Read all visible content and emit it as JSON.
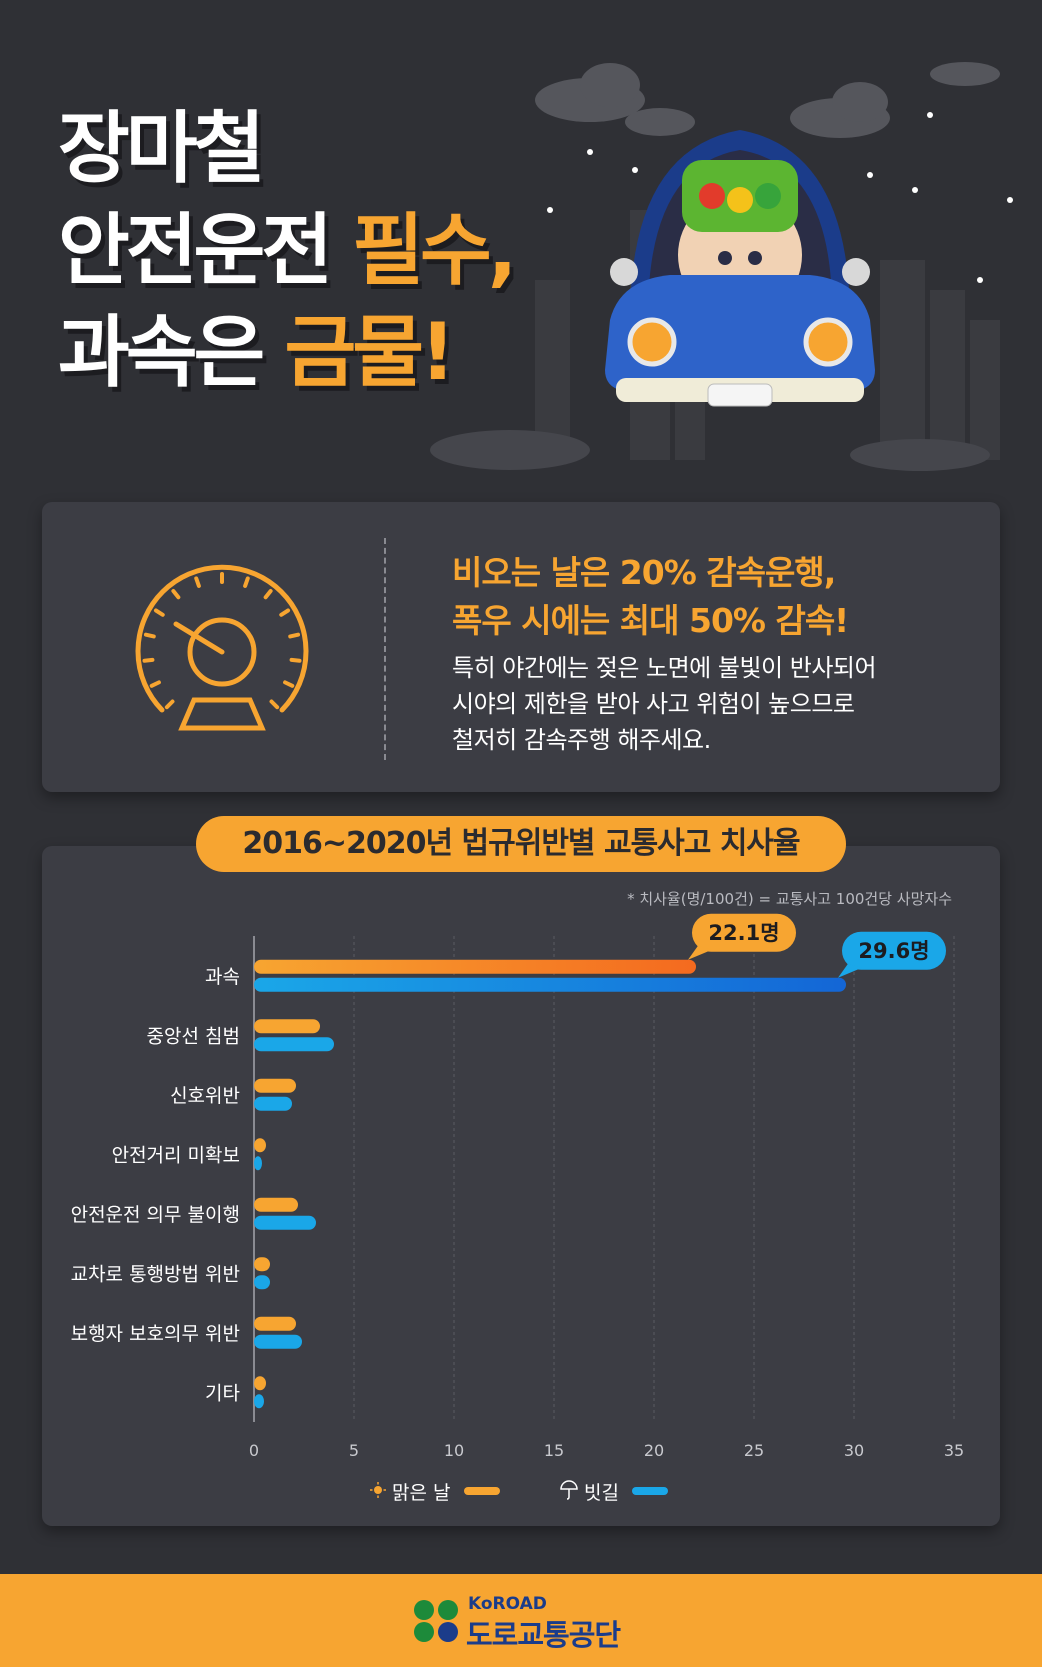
{
  "header": {
    "line1": "장마철",
    "line2_white": "안전운전 ",
    "line2_accent": "필수,",
    "line3_white": "과속은 ",
    "line3_accent": "금물!"
  },
  "info": {
    "headline1": "비오는 날은 20% 감속운행,",
    "headline2": "폭우 시에는 최대 50% 감속!",
    "body1": "특히 야간에는 젖은 노면에 불빛이 반사되어",
    "body2": "시야의 제한을 받아 사고 위험이 높으므로",
    "body3": "철저히 감속주행 해주세요."
  },
  "chart_title": "2016~2020년 법규위반별 교통사고 치사율",
  "chart_note": "* 치사율(명/100건) = 교통사고 100건당 사망자수",
  "chart_data": {
    "type": "bar",
    "orientation": "horizontal",
    "title": "2016~2020년 법규위반별 교통사고 치사율",
    "categories": [
      "과속",
      "중앙선 침범",
      "신호위반",
      "안전거리 미확보",
      "안전운전 의무 불이행",
      "교차로 통행방법 위반",
      "보행자 보호의무 위반",
      "기타"
    ],
    "series": [
      {
        "name": "맑은 날",
        "color": "#f7a531",
        "values": [
          22.1,
          3.3,
          2.1,
          0.6,
          2.2,
          0.8,
          2.1,
          0.6
        ]
      },
      {
        "name": "빗길",
        "color": "#1aa7e8",
        "values": [
          29.6,
          4.0,
          1.9,
          0.4,
          3.1,
          0.8,
          2.4,
          0.5
        ]
      }
    ],
    "xlim": [
      0,
      35
    ],
    "xticks": [
      0,
      5,
      10,
      15,
      20,
      25,
      30,
      35
    ],
    "grid": true,
    "legend": "bottom-center",
    "annotations": [
      {
        "series": "맑은 날",
        "category": "과속",
        "text": "22.1명"
      },
      {
        "series": "빗길",
        "category": "과속",
        "text": "29.6명"
      }
    ]
  },
  "legend": {
    "sunny": "맑은 날",
    "rainy": "빗길"
  },
  "footer": {
    "brand_en": "KoROAD",
    "brand_ko": "도로교통공단"
  }
}
